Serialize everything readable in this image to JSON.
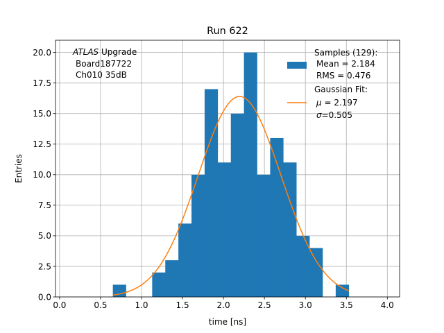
{
  "chart_data": {
    "type": "bar",
    "title": "Run 622",
    "xlabel": "time [ns]",
    "ylabel": "Entries",
    "xlim": [
      -0.05,
      4.15
    ],
    "ylim": [
      0,
      21
    ],
    "grid": true,
    "x_ticks": [
      "0.0",
      "0.5",
      "1.0",
      "1.5",
      "2.0",
      "2.5",
      "3.0",
      "3.5",
      "4.0"
    ],
    "y_ticks": [
      "0.0",
      "2.5",
      "5.0",
      "7.5",
      "10.0",
      "12.5",
      "15.0",
      "17.5",
      "20.0"
    ],
    "bin_edges": [
      0.65,
      0.81,
      0.97,
      1.13,
      1.29,
      1.45,
      1.61,
      1.77,
      1.93,
      2.09,
      2.25,
      2.41,
      2.57,
      2.73,
      2.89,
      3.05,
      3.21,
      3.37,
      3.53
    ],
    "values": [
      1,
      0,
      0,
      2,
      3,
      6,
      10,
      17,
      11,
      15,
      20,
      10,
      13,
      11,
      5,
      4,
      0,
      1
    ],
    "fit": {
      "mu": 2.197,
      "sigma": 0.505,
      "amplitude": 16.4,
      "x_range": [
        0.65,
        3.53
      ]
    },
    "annotation": {
      "line1_italic": "ATLAS",
      "line1_rest": " Upgrade",
      "line2": "Board187722",
      "line3": "Ch010 35dB"
    },
    "legend": {
      "placement": "top-right",
      "samples_title": "Samples (129):",
      "samples_mean": "Mean = 2.184",
      "samples_rms": "RMS = 0.476",
      "fit_title": "Gaussian Fit:",
      "fit_mu_symbol": "μ",
      "fit_mu_value": " = 2.197",
      "fit_sigma_symbol": "σ",
      "fit_sigma_value": "=0.505"
    },
    "colors": {
      "bars": "#1f77b4",
      "fit": "#ff7f0e",
      "grid": "#b0b0b0"
    }
  }
}
